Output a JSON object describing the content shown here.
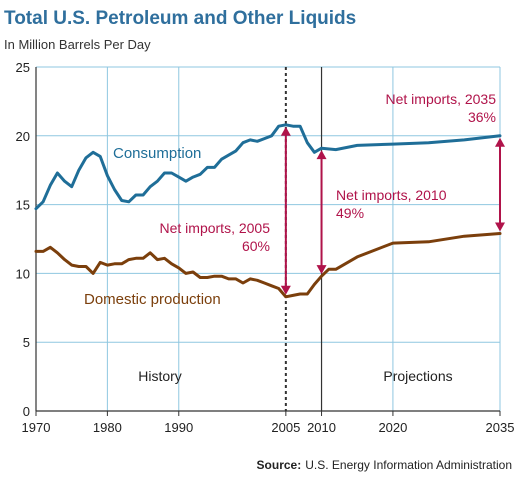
{
  "chart_data": {
    "type": "line",
    "title": "Total U.S. Petroleum and Other Liquids",
    "subtitle": "In Million Barrels Per Day",
    "xlim": [
      1970,
      2035
    ],
    "ylim": [
      0,
      25
    ],
    "grid": true,
    "x_ticks": [
      "1970",
      "1980",
      "1990",
      "2005",
      "2010",
      "2020",
      "2035"
    ],
    "x_tick_values": [
      1970,
      1980,
      1990,
      2005,
      2010,
      2020,
      2035
    ],
    "y_ticks": [
      "0",
      "5",
      "10",
      "15",
      "20",
      "25"
    ],
    "y_tick_values": [
      0,
      5,
      10,
      15,
      20,
      25
    ],
    "series": [
      {
        "name": "Consumption",
        "color": "#1f6e98",
        "points": [
          [
            1970,
            14.7
          ],
          [
            1971,
            15.2
          ],
          [
            1972,
            16.4
          ],
          [
            1973,
            17.3
          ],
          [
            1974,
            16.7
          ],
          [
            1975,
            16.3
          ],
          [
            1976,
            17.5
          ],
          [
            1977,
            18.4
          ],
          [
            1978,
            18.8
          ],
          [
            1979,
            18.5
          ],
          [
            1980,
            17.1
          ],
          [
            1981,
            16.1
          ],
          [
            1982,
            15.3
          ],
          [
            1983,
            15.2
          ],
          [
            1984,
            15.7
          ],
          [
            1985,
            15.7
          ],
          [
            1986,
            16.3
          ],
          [
            1987,
            16.7
          ],
          [
            1988,
            17.3
          ],
          [
            1989,
            17.3
          ],
          [
            1990,
            17.0
          ],
          [
            1991,
            16.7
          ],
          [
            1992,
            17.0
          ],
          [
            1993,
            17.2
          ],
          [
            1994,
            17.7
          ],
          [
            1995,
            17.7
          ],
          [
            1996,
            18.3
          ],
          [
            1997,
            18.6
          ],
          [
            1998,
            18.9
          ],
          [
            1999,
            19.5
          ],
          [
            2000,
            19.7
          ],
          [
            2001,
            19.6
          ],
          [
            2002,
            19.8
          ],
          [
            2003,
            20.0
          ],
          [
            2004,
            20.7
          ],
          [
            2005,
            20.8
          ],
          [
            2006,
            20.7
          ],
          [
            2007,
            20.7
          ],
          [
            2008,
            19.5
          ],
          [
            2009,
            18.8
          ],
          [
            2010,
            19.1
          ],
          [
            2012,
            19.0
          ],
          [
            2015,
            19.3
          ],
          [
            2020,
            19.4
          ],
          [
            2025,
            19.5
          ],
          [
            2030,
            19.7
          ],
          [
            2035,
            20.0
          ]
        ]
      },
      {
        "name": "Domestic production",
        "color": "#7b3f0c",
        "points": [
          [
            1970,
            11.6
          ],
          [
            1971,
            11.6
          ],
          [
            1972,
            11.9
          ],
          [
            1973,
            11.5
          ],
          [
            1974,
            11.0
          ],
          [
            1975,
            10.6
          ],
          [
            1976,
            10.5
          ],
          [
            1977,
            10.5
          ],
          [
            1978,
            10.0
          ],
          [
            1979,
            10.8
          ],
          [
            1980,
            10.6
          ],
          [
            1981,
            10.7
          ],
          [
            1982,
            10.7
          ],
          [
            1983,
            11.0
          ],
          [
            1984,
            11.1
          ],
          [
            1985,
            11.1
          ],
          [
            1986,
            11.5
          ],
          [
            1987,
            11.0
          ],
          [
            1988,
            11.1
          ],
          [
            1989,
            10.7
          ],
          [
            1990,
            10.4
          ],
          [
            1991,
            10.0
          ],
          [
            1992,
            10.1
          ],
          [
            1993,
            9.7
          ],
          [
            1994,
            9.7
          ],
          [
            1995,
            9.8
          ],
          [
            1996,
            9.8
          ],
          [
            1997,
            9.6
          ],
          [
            1998,
            9.6
          ],
          [
            1999,
            9.3
          ],
          [
            2000,
            9.6
          ],
          [
            2001,
            9.5
          ],
          [
            2002,
            9.3
          ],
          [
            2003,
            9.1
          ],
          [
            2004,
            8.9
          ],
          [
            2005,
            8.3
          ],
          [
            2006,
            8.4
          ],
          [
            2007,
            8.5
          ],
          [
            2008,
            8.5
          ],
          [
            2009,
            9.2
          ],
          [
            2010,
            9.8
          ],
          [
            2011,
            10.3
          ],
          [
            2012,
            10.3
          ],
          [
            2015,
            11.2
          ],
          [
            2020,
            12.2
          ],
          [
            2025,
            12.3
          ],
          [
            2030,
            12.7
          ],
          [
            2035,
            12.9
          ]
        ]
      }
    ],
    "series_labels": {
      "consumption": "Consumption",
      "production": "Domestic production"
    },
    "annotations": [
      {
        "line1": "Net imports, 2005",
        "line2": "60%",
        "x": 2005,
        "y_from": 8.3,
        "y_to": 20.8
      },
      {
        "line1": "Net imports, 2010",
        "line2": "49%",
        "x": 2010,
        "y_from": 9.8,
        "y_to": 19.1
      },
      {
        "line1": "Net imports, 2035",
        "line2": "36%",
        "x": 2035,
        "y_from": 12.9,
        "y_to": 20.0
      }
    ],
    "sections": {
      "history": "History",
      "projections": "Projections"
    },
    "source_bold": "Source:",
    "source_text": "U.S. Energy Information Administration"
  },
  "colors": {
    "title": "#2f6f9d",
    "grid": "#8fc7e0",
    "annotation": "#b0134a",
    "consumption": "#1f6e98",
    "production": "#7b3f0c"
  }
}
